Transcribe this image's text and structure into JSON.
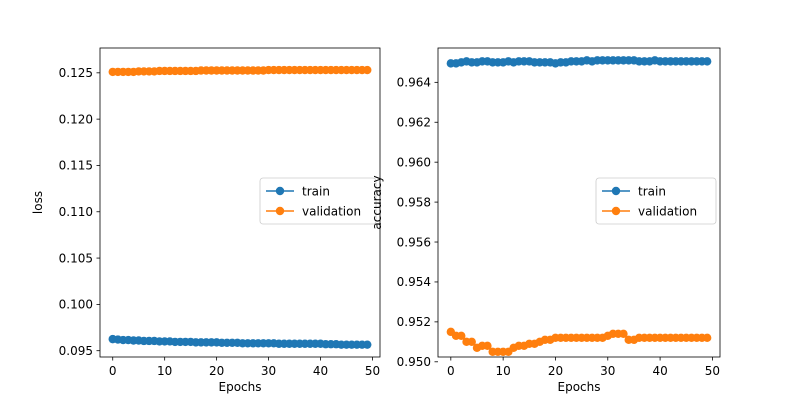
{
  "chart_data": [
    {
      "type": "line",
      "xlabel": "Epochs",
      "ylabel": "loss",
      "xlim": [
        -2.45,
        51.45
      ],
      "ylim": [
        0.09432,
        0.12768
      ],
      "xticks": [
        0,
        10,
        20,
        30,
        40,
        50
      ],
      "yticks": [
        0.095,
        0.1,
        0.105,
        0.11,
        0.115,
        0.12,
        0.125
      ],
      "ytick_decimals": 3,
      "legend": "center-right",
      "series": [
        {
          "name": "train",
          "color": "#1f77b4",
          "values": [
            0.09625,
            0.0962,
            0.09615,
            0.09615,
            0.0961,
            0.0961,
            0.09605,
            0.09605,
            0.09605,
            0.096,
            0.096,
            0.096,
            0.09595,
            0.09595,
            0.09595,
            0.09595,
            0.0959,
            0.0959,
            0.0959,
            0.0959,
            0.0959,
            0.09585,
            0.09585,
            0.09585,
            0.09585,
            0.0958,
            0.0958,
            0.0958,
            0.0958,
            0.0958,
            0.0958,
            0.0958,
            0.09575,
            0.09575,
            0.09575,
            0.09575,
            0.09575,
            0.09575,
            0.09575,
            0.09575,
            0.09575,
            0.0957,
            0.0957,
            0.0957,
            0.09565,
            0.09565,
            0.09565,
            0.09565,
            0.09565,
            0.09565
          ]
        },
        {
          "name": "validation",
          "color": "#ff7f0e",
          "values": [
            0.1251,
            0.1251,
            0.1251,
            0.1251,
            0.1251,
            0.12515,
            0.12515,
            0.12515,
            0.12515,
            0.1252,
            0.1252,
            0.1252,
            0.1252,
            0.1252,
            0.1252,
            0.1252,
            0.1252,
            0.12525,
            0.12525,
            0.12525,
            0.12525,
            0.12525,
            0.12525,
            0.12525,
            0.12525,
            0.12525,
            0.12525,
            0.12525,
            0.12525,
            0.12525,
            0.1253,
            0.1253,
            0.1253,
            0.1253,
            0.1253,
            0.1253,
            0.1253,
            0.1253,
            0.1253,
            0.1253,
            0.1253,
            0.1253,
            0.1253,
            0.1253,
            0.1253,
            0.1253,
            0.1253,
            0.1253,
            0.1253,
            0.1253
          ]
        }
      ]
    },
    {
      "type": "line",
      "xlabel": "Epochs",
      "ylabel": "accuracy",
      "xlim": [
        -2.45,
        51.45
      ],
      "ylim": [
        0.95024,
        0.96572
      ],
      "xticks": [
        0,
        10,
        20,
        30,
        40,
        50
      ],
      "yticks": [
        0.95,
        0.952,
        0.954,
        0.956,
        0.958,
        0.96,
        0.962,
        0.964
      ],
      "ytick_decimals": 3,
      "legend": "center-right",
      "series": [
        {
          "name": "train",
          "color": "#1f77b4",
          "values": [
            0.96495,
            0.96495,
            0.965,
            0.96505,
            0.965,
            0.965,
            0.96505,
            0.96505,
            0.965,
            0.965,
            0.965,
            0.96505,
            0.965,
            0.96505,
            0.96505,
            0.96505,
            0.965,
            0.965,
            0.965,
            0.965,
            0.96495,
            0.965,
            0.965,
            0.96505,
            0.96505,
            0.96505,
            0.9651,
            0.96505,
            0.9651,
            0.9651,
            0.9651,
            0.9651,
            0.9651,
            0.9651,
            0.9651,
            0.9651,
            0.96505,
            0.96505,
            0.96505,
            0.9651,
            0.96505,
            0.96505,
            0.96505,
            0.96505,
            0.96505,
            0.96505,
            0.96505,
            0.96505,
            0.96505,
            0.96505
          ]
        },
        {
          "name": "validation",
          "color": "#ff7f0e",
          "values": [
            0.9515,
            0.9513,
            0.9513,
            0.951,
            0.951,
            0.9507,
            0.9508,
            0.9508,
            0.9505,
            0.9505,
            0.9505,
            0.9505,
            0.9507,
            0.9508,
            0.9508,
            0.9509,
            0.9509,
            0.951,
            0.9511,
            0.9511,
            0.9512,
            0.9512,
            0.9512,
            0.9512,
            0.9512,
            0.9512,
            0.9512,
            0.9512,
            0.9512,
            0.9512,
            0.9513,
            0.9514,
            0.9514,
            0.9514,
            0.9511,
            0.9511,
            0.9512,
            0.9512,
            0.9512,
            0.9512,
            0.9512,
            0.9512,
            0.9512,
            0.9512,
            0.9512,
            0.9512,
            0.9512,
            0.9512,
            0.9512,
            0.9512
          ]
        }
      ]
    }
  ]
}
